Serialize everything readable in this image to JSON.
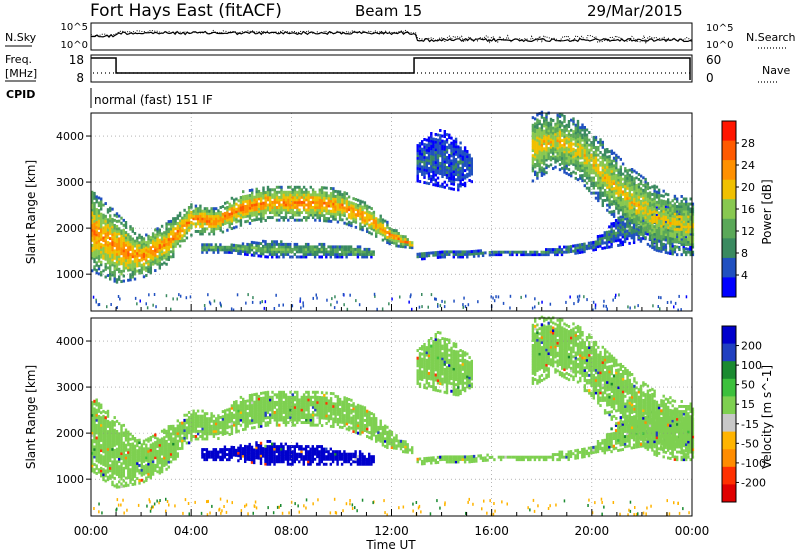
{
  "header": {
    "title": "Fort Hays East (fitACF)",
    "beam": "Beam 15",
    "date": "29/Mar/2015"
  },
  "noise_panel": {
    "left_label": "N.Sky",
    "left_ticks": [
      "10^5",
      "10^0"
    ],
    "right_ticks": [
      "10^5",
      "10^0"
    ],
    "right_label": "N.Search"
  },
  "freq_panel": {
    "left_label_line1": "Freq.",
    "left_label_line2": "[MHz]",
    "left_ticks": [
      "18",
      "8"
    ],
    "right_ticks": [
      "60",
      "0"
    ],
    "right_label": "Nave"
  },
  "cpid": {
    "label": "CPID",
    "text": "normal (fast) 151 IF"
  },
  "x_axis": {
    "label": "Time UT",
    "ticks": [
      "00:00",
      "04:00",
      "08:00",
      "12:00",
      "16:00",
      "20:00",
      "00:00"
    ],
    "range_hours": [
      0,
      24
    ]
  },
  "colors": {
    "power_scale": [
      "#0000ff",
      "#2050c0",
      "#3a8a60",
      "#5aa858",
      "#88c850",
      "#f0c000",
      "#ff9000",
      "#ff5a00",
      "#ff1500"
    ],
    "velocity_scale": [
      "#0000cc",
      "#2040c0",
      "#1a8a30",
      "#3cc03c",
      "#7ed050",
      "#c8c8c8",
      "#ffb400",
      "#ff8c00",
      "#ff3000",
      "#e00000"
    ]
  },
  "chart_data": [
    {
      "type": "heatmap",
      "ylabel": "Slant Range [km]",
      "yticks": [
        "1000",
        "2000",
        "3000",
        "4000"
      ],
      "ylim": [
        200,
        4500
      ],
      "colorbar": {
        "label": "Power [dB]",
        "ticks": [
          "28",
          "24",
          "20",
          "16",
          "12",
          "8",
          "4"
        ],
        "range": [
          0,
          32
        ]
      },
      "bands": [
        {
          "t": [
            0,
            1,
            2,
            3,
            4,
            5,
            6,
            7,
            8,
            9,
            10,
            11,
            12,
            12.8
          ],
          "lower_km": [
            1050,
            800,
            900,
            1200,
            1850,
            1850,
            2050,
            2150,
            2150,
            2150,
            2100,
            1900,
            1600,
            1550
          ],
          "upper_km": [
            2800,
            2300,
            1800,
            2100,
            2500,
            2400,
            2800,
            2900,
            2900,
            2900,
            2800,
            2500,
            2000,
            1700
          ],
          "core_db": 22
        },
        {
          "t": [
            4.4,
            5.5,
            7,
            9,
            10.5,
            11.3
          ],
          "lower_km": [
            1450,
            1450,
            1350,
            1350,
            1350,
            1350
          ],
          "upper_km": [
            1650,
            1650,
            1700,
            1650,
            1600,
            1500
          ],
          "core_db": 12
        },
        {
          "t": [
            13,
            14,
            15,
            16,
            17,
            18,
            19,
            20,
            21,
            22,
            23,
            24
          ],
          "lower_km": [
            1300,
            1350,
            1350,
            1400,
            1400,
            1400,
            1400,
            1500,
            1600,
            1700,
            1600,
            1500
          ],
          "upper_km": [
            1450,
            1500,
            1500,
            1500,
            1500,
            1500,
            1600,
            1700,
            2200,
            2400,
            2500,
            2400
          ],
          "core_db": 8
        },
        {
          "t": [
            13,
            13.8,
            14.6,
            15.2
          ],
          "lower_km": [
            3000,
            2900,
            2800,
            3000
          ],
          "upper_km": [
            3800,
            4200,
            3900,
            3600
          ],
          "core_db": 6
        },
        {
          "t": [
            17.6,
            18.5,
            19.5,
            20.5,
            21.5,
            22.5,
            23.3,
            24
          ],
          "lower_km": [
            3000,
            3300,
            3000,
            2400,
            1900,
            1500,
            1400,
            1400
          ],
          "upper_km": [
            4500,
            4500,
            4300,
            3800,
            3300,
            2900,
            2700,
            2600
          ],
          "core_db": 18
        }
      ]
    },
    {
      "type": "heatmap",
      "ylabel": "Slant Range [km]",
      "yticks": [
        "1000",
        "2000",
        "3000",
        "4000"
      ],
      "ylim": [
        200,
        4500
      ],
      "colorbar": {
        "label": "Velocity [m s^-1]",
        "ticks": [
          "200",
          "100",
          "50",
          "15",
          "-15",
          "-50",
          "-100",
          "-200"
        ],
        "range": [
          -250,
          250
        ]
      },
      "bands": [
        {
          "t": [
            0,
            1,
            2,
            3,
            4,
            5,
            6,
            7,
            8,
            9,
            10,
            11,
            12,
            12.8
          ],
          "lower_km": [
            1100,
            800,
            900,
            1200,
            1850,
            1850,
            2050,
            2150,
            2150,
            2150,
            2100,
            1900,
            1600,
            1550
          ],
          "upper_km": [
            2800,
            2300,
            1800,
            2100,
            2500,
            2400,
            2800,
            2900,
            2900,
            2900,
            2800,
            2500,
            2000,
            1700
          ],
          "core_velocity": 0
        },
        {
          "t": [
            4.4,
            5.5,
            7,
            9,
            10.5,
            11.3
          ],
          "lower_km": [
            1400,
            1400,
            1300,
            1300,
            1300,
            1300
          ],
          "upper_km": [
            1650,
            1700,
            1800,
            1700,
            1600,
            1500
          ],
          "core_velocity": 200
        },
        {
          "t": [
            13,
            14,
            15,
            16,
            17,
            18,
            19,
            20,
            21,
            22,
            23,
            24
          ],
          "lower_km": [
            1300,
            1350,
            1350,
            1400,
            1400,
            1400,
            1400,
            1500,
            1600,
            1700,
            1600,
            1500
          ],
          "upper_km": [
            1450,
            1500,
            1500,
            1500,
            1500,
            1500,
            1600,
            1700,
            2200,
            2400,
            2500,
            2400
          ],
          "core_velocity": 0
        },
        {
          "t": [
            13,
            13.8,
            14.6,
            15.2
          ],
          "lower_km": [
            3000,
            2900,
            2800,
            3000
          ],
          "upper_km": [
            3800,
            4200,
            3900,
            3600
          ],
          "core_velocity": 0
        },
        {
          "t": [
            17.6,
            18.5,
            19.5,
            20.5,
            21.5,
            22.5,
            23.3,
            24
          ],
          "lower_km": [
            3000,
            3300,
            3000,
            2400,
            1900,
            1500,
            1400,
            1400
          ],
          "upper_km": [
            4500,
            4500,
            4300,
            3800,
            3300,
            2900,
            2700,
            2600
          ],
          "core_velocity": 0
        }
      ]
    }
  ]
}
